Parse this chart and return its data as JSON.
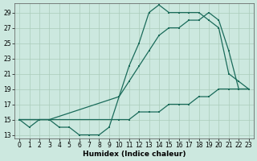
{
  "xlabel": "Humidex (Indice chaleur)",
  "bg_color": "#cce8df",
  "grid_color": "#aaccbb",
  "line_color": "#1a6b5a",
  "xlim": [
    -0.5,
    23.5
  ],
  "ylim": [
    12.5,
    30.2
  ],
  "yticks": [
    13,
    15,
    17,
    19,
    21,
    23,
    25,
    27,
    29
  ],
  "xticks": [
    0,
    1,
    2,
    3,
    4,
    5,
    6,
    7,
    8,
    9,
    10,
    11,
    12,
    13,
    14,
    15,
    16,
    17,
    18,
    19,
    20,
    21,
    22,
    23
  ],
  "lineA_x": [
    0,
    1,
    2,
    3,
    4,
    5,
    6,
    7,
    8,
    9,
    10,
    11,
    12,
    13,
    14,
    15,
    16,
    17,
    18,
    19,
    20,
    21,
    22,
    23
  ],
  "lineA_y": [
    15,
    14,
    15,
    15,
    14,
    14,
    13,
    13,
    13,
    14,
    18,
    22,
    25,
    29,
    30,
    29,
    29,
    29,
    29,
    28,
    27,
    21,
    20,
    19
  ],
  "lineB_x": [
    0,
    3,
    10,
    11,
    12,
    13,
    14,
    15,
    16,
    17,
    18,
    19,
    20,
    21,
    22,
    23
  ],
  "lineB_y": [
    15,
    15,
    18,
    20,
    22,
    24,
    26,
    27,
    27,
    28,
    28,
    29,
    28,
    24,
    19,
    19
  ],
  "lineC_x": [
    0,
    3,
    10,
    11,
    12,
    13,
    14,
    15,
    16,
    17,
    18,
    19,
    20,
    21,
    22,
    23
  ],
  "lineC_y": [
    15,
    15,
    15,
    15,
    16,
    16,
    16,
    17,
    17,
    17,
    18,
    18,
    19,
    19,
    19,
    19
  ]
}
